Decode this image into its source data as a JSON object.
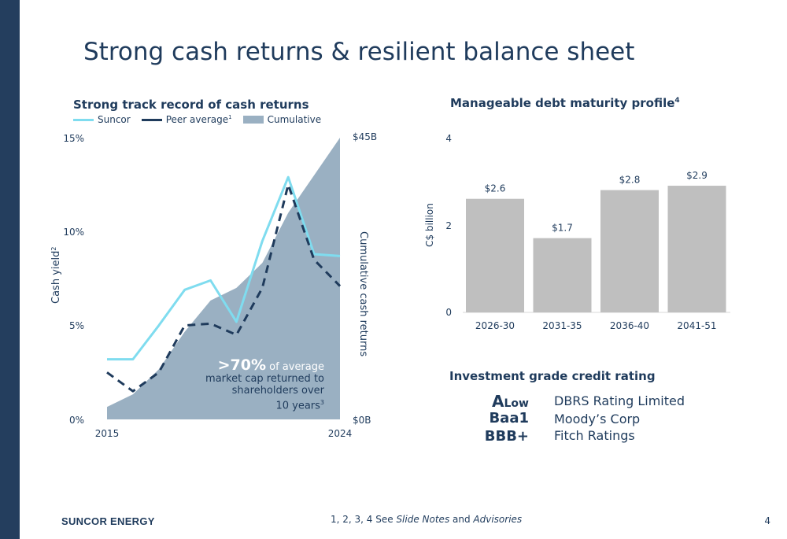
{
  "slide": {
    "title": "Strong cash returns & resilient balance sheet",
    "brand": "SUNCOR ENERGY",
    "footnote_prefix": "1, 2, 3, 4 See ",
    "footnote_notes": "Slide Notes",
    "footnote_and": " and ",
    "footnote_adv": "Advisories",
    "page": "4"
  },
  "colors": {
    "navy": "#1f3b5c",
    "suncor_line": "#7fdcef",
    "peer_line": "#1f3b5c",
    "cumulative_area": "#9ab0c2",
    "bar": "#bfbfbf"
  },
  "left_chart": {
    "title": "Strong track record of cash returns",
    "legend_suncor": "Suncor",
    "legend_peer": "Peer average",
    "legend_peer_sup": "1",
    "legend_cumulative": "Cumulative",
    "y_label": "Cash yield",
    "y_label_sup": "2",
    "y2_label": "Cumulative cash returns",
    "y_ticks": [
      "0%",
      "5%",
      "10%",
      "15%"
    ],
    "y2_ticks": [
      "$0B",
      "$45B"
    ],
    "x_ticks": [
      "2015",
      "2024"
    ],
    "callout_big": ">70%",
    "callout_1": " of average",
    "callout_2": "market cap returned to",
    "callout_3": "shareholders over",
    "callout_4": "10 years",
    "callout_sup": "3"
  },
  "right_chart": {
    "title": "Manageable debt maturity profile",
    "title_sup": "4",
    "y_label": "C$ billion",
    "y_ticks": [
      "0",
      "2",
      "4"
    ]
  },
  "ratings": {
    "title": "Investment grade credit rating",
    "rows": [
      {
        "code_main": "A",
        "code_sub": "Low",
        "agency": "DBRS Rating Limited"
      },
      {
        "code_main": "Baa1",
        "code_sub": "",
        "agency": "Moody’s Corp"
      },
      {
        "code_main": "BBB+",
        "code_sub": "",
        "agency": "Fitch Ratings"
      }
    ]
  },
  "chart_data": [
    {
      "type": "line",
      "title": "Strong track record of cash returns",
      "ylabel": "Cash yield",
      "y2label": "Cumulative cash returns",
      "ylim": [
        0,
        15
      ],
      "y2lim": [
        0,
        45
      ],
      "x": [
        2015,
        2016,
        2017,
        2018,
        2019,
        2020,
        2021,
        2022,
        2023,
        2024
      ],
      "series": [
        {
          "name": "Suncor",
          "type": "line",
          "values": [
            3.2,
            3.2,
            5.0,
            6.9,
            7.4,
            5.2,
            9.5,
            12.9,
            8.8,
            8.7
          ]
        },
        {
          "name": "Peer average",
          "type": "line",
          "values": [
            2.5,
            1.5,
            2.5,
            5.0,
            5.1,
            4.5,
            7.0,
            12.5,
            8.5,
            7.1
          ]
        },
        {
          "name": "Cumulative",
          "type": "area",
          "axis": "y2",
          "values": [
            2,
            4,
            8,
            14,
            19,
            21,
            25,
            33,
            39,
            45
          ]
        }
      ],
      "xticks": [
        "2015",
        "2024"
      ]
    },
    {
      "type": "bar",
      "title": "Manageable debt maturity profile",
      "ylabel": "C$ billion",
      "ylim": [
        0,
        4
      ],
      "categories": [
        "2026-30",
        "2031-35",
        "2036-40",
        "2041-51"
      ],
      "values": [
        2.6,
        1.7,
        2.8,
        2.9
      ],
      "labels": [
        "$2.6",
        "$1.7",
        "$2.8",
        "$2.9"
      ]
    }
  ]
}
